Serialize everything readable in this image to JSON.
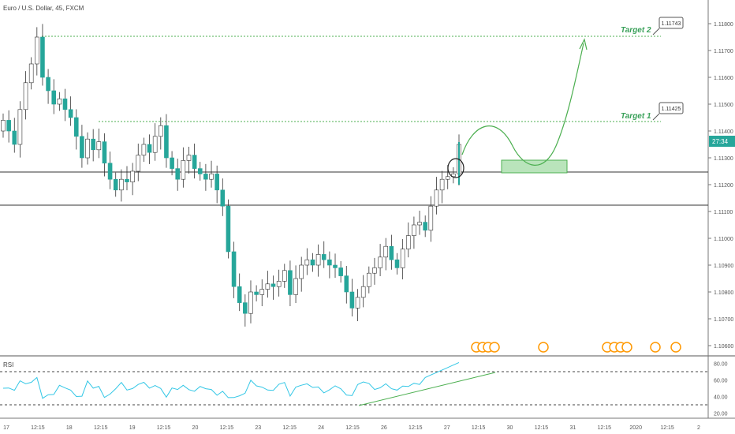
{
  "header": {
    "symbol_title": "Euro / U.S. Dollar, 45, FXCM"
  },
  "annotations": {
    "target1_label": "Target 1",
    "target1_price": "1.11425",
    "target2_label": "Target 2",
    "target2_price": "1.11743",
    "current_price_tag": "27:34"
  },
  "rsi": {
    "label": "RSI",
    "ticks": [
      "80.00",
      "60.00",
      "40.00",
      "20.00"
    ],
    "levels": [
      70,
      30
    ]
  },
  "colors": {
    "up": "#26a69a",
    "down": "#26a69a",
    "accent_green": "#4caf50",
    "rsi_line": "#33c7e6",
    "axis_text": "#555555",
    "price_tag_bg": "#26a69a"
  },
  "chart_data": {
    "type": "candlestick",
    "title": "Euro / U.S. Dollar, 45, FXCM",
    "y_ticks": [
      "1.11800",
      "1.11700",
      "1.11600",
      "1.11500",
      "1.11400",
      "1.11300",
      "1.11200",
      "1.11100",
      "1.11000",
      "1.10900",
      "1.10800",
      "1.10700",
      "1.10600"
    ],
    "ylim": [
      1.1056,
      1.119
    ],
    "x_ticks": [
      "17",
      "12:15",
      "18",
      "12:15",
      "19",
      "12:15",
      "20",
      "12:15",
      "23",
      "12:15",
      "24",
      "12:15",
      "26",
      "12:15",
      "27",
      "12:15",
      "30",
      "12:15",
      "31",
      "12:15",
      "2020",
      "12:15",
      "2"
    ],
    "horizontal_levels": [
      1.1124,
      1.1112
    ],
    "targets": [
      1.11425,
      1.11743
    ],
    "close_series": [
      1.1144,
      1.114,
      1.1135,
      1.1148,
      1.1158,
      1.1165,
      1.1175,
      1.116,
      1.1155,
      1.115,
      1.1152,
      1.1148,
      1.1145,
      1.1138,
      1.113,
      1.1137,
      1.1133,
      1.1136,
      1.1128,
      1.1122,
      1.1118,
      1.1122,
      1.1121,
      1.1125,
      1.1131,
      1.1135,
      1.1132,
      1.1138,
      1.1142,
      1.113,
      1.1126,
      1.1122,
      1.1129,
      1.1131,
      1.1126,
      1.1124,
      1.1122,
      1.1124,
      1.1118,
      1.1112,
      1.1095,
      1.1082,
      1.1076,
      1.1072,
      1.108,
      1.1079,
      1.1081,
      1.1083,
      1.1082,
      1.1084,
      1.1088,
      1.1079,
      1.1085,
      1.109,
      1.1092,
      1.109,
      1.1094,
      1.1092,
      1.109,
      1.1089,
      1.1086,
      1.108,
      1.1074,
      1.1078,
      1.1082,
      1.1087,
      1.1089,
      1.1093,
      1.1097,
      1.1092,
      1.1089,
      1.1096,
      1.1101,
      1.1105,
      1.1106,
      1.1103,
      1.1112,
      1.1118,
      1.1122,
      1.1123,
      1.1124,
      1.1135
    ]
  }
}
